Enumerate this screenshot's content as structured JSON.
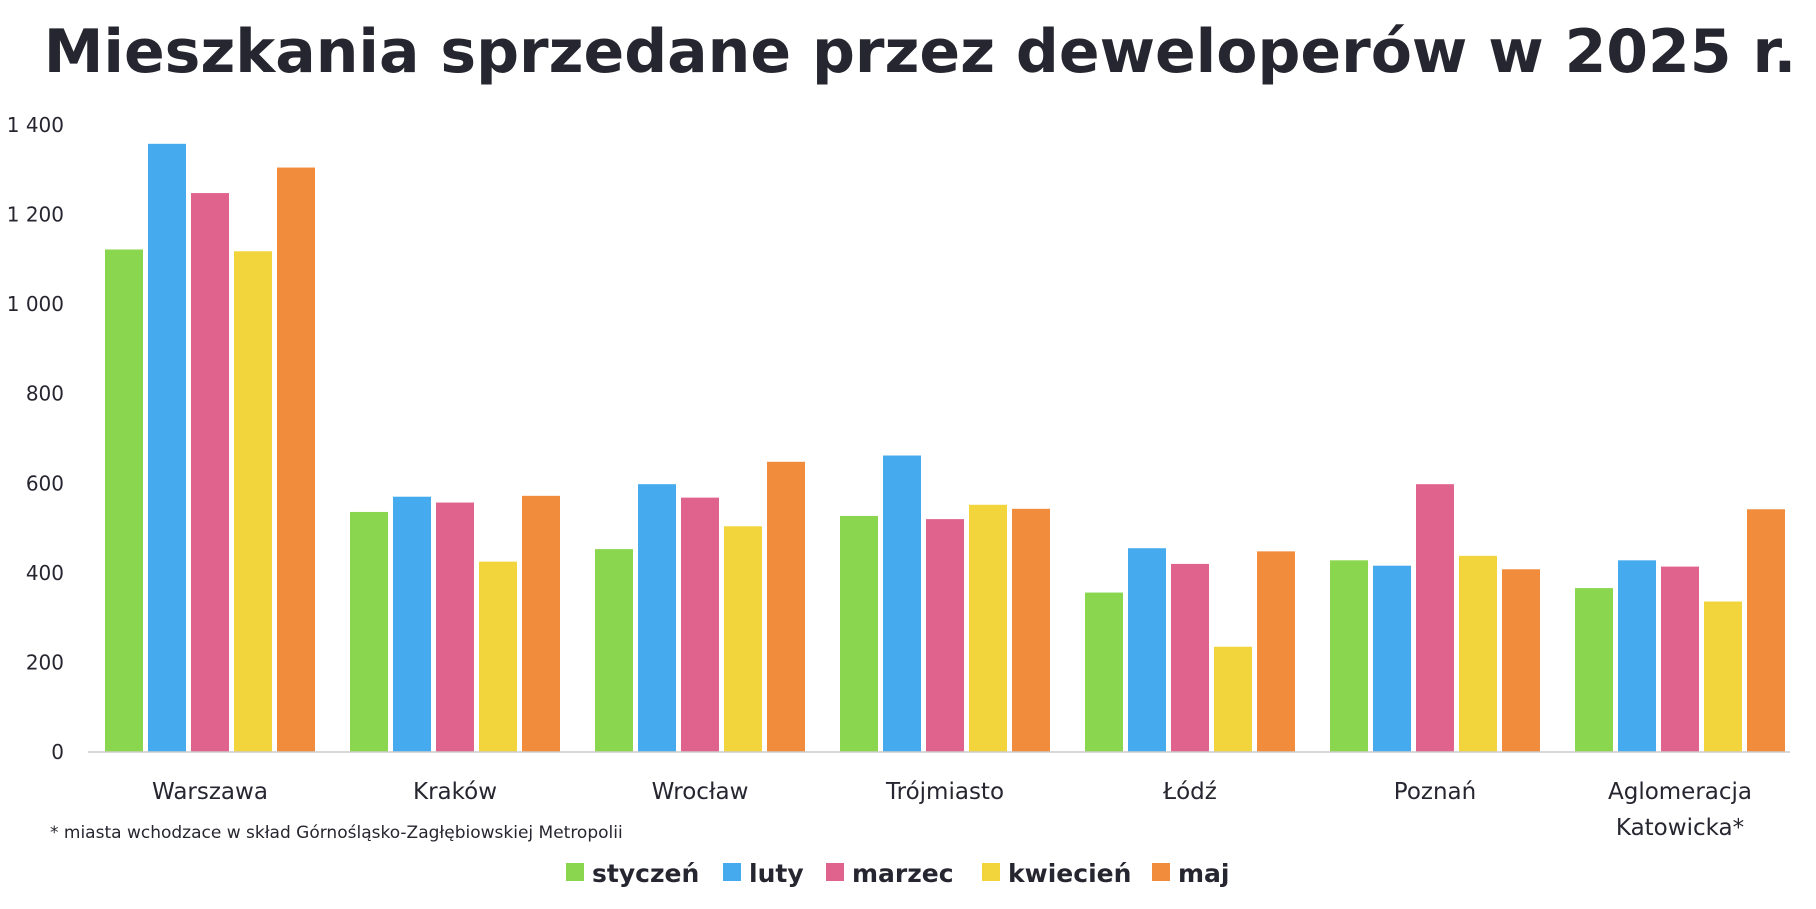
{
  "chart_data": {
    "type": "bar",
    "title": "Mieszkania sprzedane przez deweloperów w 2025 r.",
    "xlabel": "",
    "ylabel": "",
    "ylim": [
      0,
      1400
    ],
    "yticks": [
      0,
      200,
      400,
      600,
      800,
      1000,
      1200,
      1400
    ],
    "ytick_labels": [
      "0",
      "200",
      "400",
      "600",
      "800",
      "1 000",
      "1 200",
      "1 400"
    ],
    "categories": [
      [
        "Warszawa"
      ],
      [
        "Kraków"
      ],
      [
        "Wrocław"
      ],
      [
        "Trójmiasto"
      ],
      [
        "Łódź"
      ],
      [
        "Poznań"
      ],
      [
        "Aglomeracja",
        "Katowicka*"
      ]
    ],
    "series": [
      {
        "name": "styczeń",
        "color": "#8ad64f",
        "values": [
          1122,
          536,
          453,
          527,
          356,
          428,
          366
        ]
      },
      {
        "name": "luty",
        "color": "#45aaee",
        "values": [
          1358,
          570,
          598,
          662,
          455,
          416,
          428
        ]
      },
      {
        "name": "marzec",
        "color": "#e0638d",
        "values": [
          1248,
          557,
          568,
          520,
          420,
          598,
          414
        ]
      },
      {
        "name": "kwiecień",
        "color": "#f2d43c",
        "values": [
          1118,
          425,
          504,
          552,
          235,
          438,
          336
        ]
      },
      {
        "name": "maj",
        "color": "#f08c3c",
        "values": [
          1305,
          572,
          648,
          543,
          448,
          408,
          542
        ]
      }
    ],
    "legend_position": "bottom-center",
    "footnote": "* miasta wchodzace w skład Górnośląsko-Zagłębiowskiej Metropolii",
    "grid": false
  }
}
